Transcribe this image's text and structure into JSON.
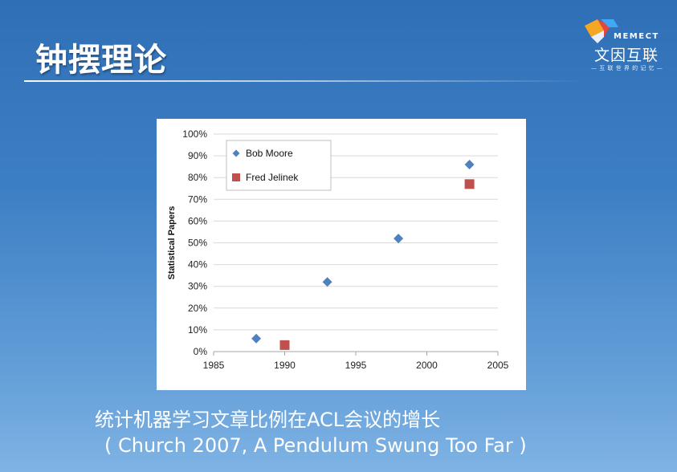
{
  "slide": {
    "title": "钟摆理论",
    "logo": {
      "brand": "MEMECT",
      "name_cn": "文因互联",
      "tagline": "— 互 联 世 界 的 记 忆 —"
    },
    "caption_line1": "统计机器学习文章比例在ACL会议的增长",
    "caption_line2": "( Church 2007, A Pendulum Swung Too Far  )"
  },
  "colors": {
    "background_top": "#2f6fb6",
    "background_bottom": "#7fb3e4",
    "series_bob": "#4f81bd",
    "series_fred": "#c0504d",
    "grid": "#d9d9d9"
  },
  "chart_data": {
    "type": "scatter",
    "title": "",
    "xlabel": "",
    "ylabel": "Statistical Papers",
    "xlim": [
      1985,
      2005
    ],
    "ylim": [
      0,
      100
    ],
    "x_ticks": [
      "1985",
      "1990",
      "1995",
      "2000",
      "2005"
    ],
    "y_ticks": [
      "0%",
      "10%",
      "20%",
      "30%",
      "40%",
      "50%",
      "60%",
      "70%",
      "80%",
      "90%",
      "100%"
    ],
    "grid": "horizontal",
    "legend_position": "top-left",
    "series": [
      {
        "name": "Bob Moore",
        "marker": "diamond",
        "color": "#4f81bd",
        "points": [
          {
            "x": 1988,
            "y": 6
          },
          {
            "x": 1993,
            "y": 32
          },
          {
            "x": 1998,
            "y": 52
          },
          {
            "x": 2003,
            "y": 86
          }
        ]
      },
      {
        "name": "Fred Jelinek",
        "marker": "square",
        "color": "#c0504d",
        "points": [
          {
            "x": 1990,
            "y": 3
          },
          {
            "x": 2003,
            "y": 77
          }
        ]
      }
    ]
  }
}
